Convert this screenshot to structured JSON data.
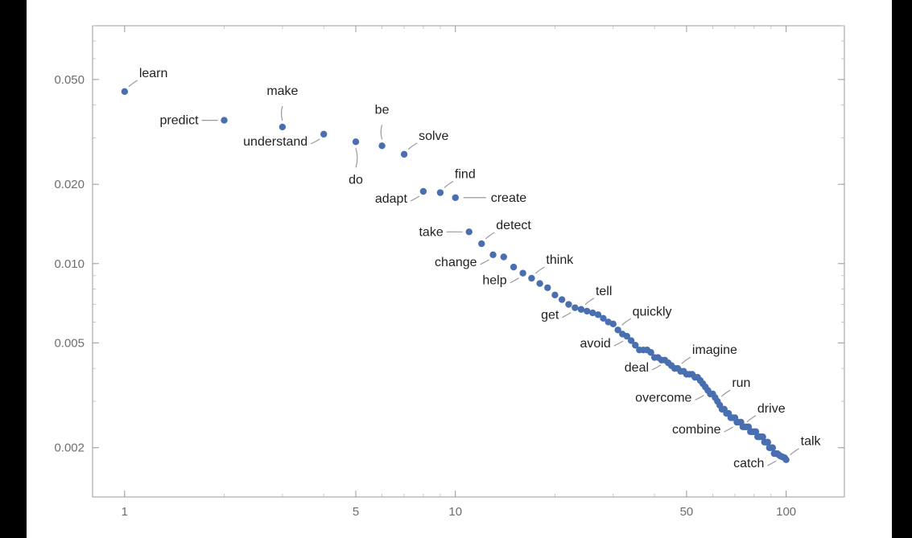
{
  "chart_data": {
    "type": "scatter",
    "title": "",
    "xlabel": "",
    "ylabel": "",
    "x_scale": "log",
    "y_scale": "log",
    "xlim": [
      0.8,
      150
    ],
    "ylim": [
      0.0013,
      0.08
    ],
    "grid": false,
    "legend": "none",
    "marker_color": "#4a6fb0",
    "x_ticks": [
      {
        "value": 1,
        "label": "1"
      },
      {
        "value": 5,
        "label": "5"
      },
      {
        "value": 10,
        "label": "10"
      },
      {
        "value": 50,
        "label": "50"
      },
      {
        "value": 100,
        "label": "100"
      }
    ],
    "y_ticks": [
      {
        "value": 0.05,
        "label": "0.050"
      },
      {
        "value": 0.02,
        "label": "0.020"
      },
      {
        "value": 0.01,
        "label": "0.010"
      },
      {
        "value": 0.005,
        "label": "0.005"
      },
      {
        "value": 0.002,
        "label": "0.002"
      }
    ],
    "points": [
      {
        "x": 1,
        "y": 0.045
      },
      {
        "x": 2,
        "y": 0.035
      },
      {
        "x": 3,
        "y": 0.033
      },
      {
        "x": 4,
        "y": 0.031
      },
      {
        "x": 5,
        "y": 0.029
      },
      {
        "x": 6,
        "y": 0.028
      },
      {
        "x": 7,
        "y": 0.026
      },
      {
        "x": 8,
        "y": 0.0188
      },
      {
        "x": 9,
        "y": 0.0186
      },
      {
        "x": 10,
        "y": 0.0178
      },
      {
        "x": 11,
        "y": 0.0132
      },
      {
        "x": 12,
        "y": 0.0119
      },
      {
        "x": 13,
        "y": 0.0108
      },
      {
        "x": 14,
        "y": 0.0106
      },
      {
        "x": 15,
        "y": 0.0097
      },
      {
        "x": 16,
        "y": 0.0092
      },
      {
        "x": 17,
        "y": 0.0088
      },
      {
        "x": 18,
        "y": 0.0084
      },
      {
        "x": 19,
        "y": 0.0081
      },
      {
        "x": 20,
        "y": 0.0076
      },
      {
        "x": 21,
        "y": 0.0073
      },
      {
        "x": 22,
        "y": 0.007
      },
      {
        "x": 23,
        "y": 0.0068
      },
      {
        "x": 24,
        "y": 0.0067
      },
      {
        "x": 25,
        "y": 0.0066
      },
      {
        "x": 26,
        "y": 0.0065
      },
      {
        "x": 27,
        "y": 0.0064
      },
      {
        "x": 28,
        "y": 0.0062
      },
      {
        "x": 29,
        "y": 0.006
      },
      {
        "x": 30,
        "y": 0.0059
      },
      {
        "x": 31,
        "y": 0.0056
      },
      {
        "x": 32,
        "y": 0.0054
      },
      {
        "x": 33,
        "y": 0.0053
      },
      {
        "x": 34,
        "y": 0.0051
      },
      {
        "x": 35,
        "y": 0.0049
      },
      {
        "x": 36,
        "y": 0.0047
      },
      {
        "x": 37,
        "y": 0.0047
      },
      {
        "x": 38,
        "y": 0.0047
      },
      {
        "x": 39,
        "y": 0.0046
      },
      {
        "x": 40,
        "y": 0.0044
      },
      {
        "x": 41,
        "y": 0.0044
      },
      {
        "x": 42,
        "y": 0.0043
      },
      {
        "x": 43,
        "y": 0.0043
      },
      {
        "x": 44,
        "y": 0.0042
      },
      {
        "x": 45,
        "y": 0.0041
      },
      {
        "x": 46,
        "y": 0.004
      },
      {
        "x": 47,
        "y": 0.004
      },
      {
        "x": 48,
        "y": 0.0039
      },
      {
        "x": 49,
        "y": 0.0039
      },
      {
        "x": 50,
        "y": 0.0038
      },
      {
        "x": 51,
        "y": 0.0038
      },
      {
        "x": 52,
        "y": 0.0038
      },
      {
        "x": 53,
        "y": 0.0037
      },
      {
        "x": 54,
        "y": 0.0037
      },
      {
        "x": 55,
        "y": 0.0036
      },
      {
        "x": 56,
        "y": 0.0035
      },
      {
        "x": 57,
        "y": 0.0034
      },
      {
        "x": 58,
        "y": 0.0033
      },
      {
        "x": 59,
        "y": 0.0032
      },
      {
        "x": 60,
        "y": 0.0032
      },
      {
        "x": 61,
        "y": 0.0031
      },
      {
        "x": 62,
        "y": 0.003
      },
      {
        "x": 63,
        "y": 0.0029
      },
      {
        "x": 64,
        "y": 0.0028
      },
      {
        "x": 65,
        "y": 0.0028
      },
      {
        "x": 66,
        "y": 0.0027
      },
      {
        "x": 67,
        "y": 0.0027
      },
      {
        "x": 68,
        "y": 0.0026
      },
      {
        "x": 69,
        "y": 0.0026
      },
      {
        "x": 70,
        "y": 0.0026
      },
      {
        "x": 71,
        "y": 0.0025
      },
      {
        "x": 72,
        "y": 0.0025
      },
      {
        "x": 73,
        "y": 0.0025
      },
      {
        "x": 74,
        "y": 0.0024
      },
      {
        "x": 75,
        "y": 0.0024
      },
      {
        "x": 76,
        "y": 0.0024
      },
      {
        "x": 77,
        "y": 0.0024
      },
      {
        "x": 78,
        "y": 0.0023
      },
      {
        "x": 79,
        "y": 0.0023
      },
      {
        "x": 80,
        "y": 0.0023
      },
      {
        "x": 81,
        "y": 0.0023
      },
      {
        "x": 82,
        "y": 0.0022
      },
      {
        "x": 83,
        "y": 0.0022
      },
      {
        "x": 84,
        "y": 0.0022
      },
      {
        "x": 85,
        "y": 0.0022
      },
      {
        "x": 86,
        "y": 0.0021
      },
      {
        "x": 87,
        "y": 0.0021
      },
      {
        "x": 88,
        "y": 0.0021
      },
      {
        "x": 89,
        "y": 0.002
      },
      {
        "x": 90,
        "y": 0.002
      },
      {
        "x": 91,
        "y": 0.002
      },
      {
        "x": 92,
        "y": 0.0019
      },
      {
        "x": 93,
        "y": 0.0019
      },
      {
        "x": 94,
        "y": 0.0019
      },
      {
        "x": 95,
        "y": 0.00188
      },
      {
        "x": 96,
        "y": 0.00186
      },
      {
        "x": 97,
        "y": 0.00185
      },
      {
        "x": 98,
        "y": 0.00184
      },
      {
        "x": 99,
        "y": 0.00183
      },
      {
        "x": 100,
        "y": 0.0018
      }
    ],
    "annotations": [
      {
        "text": "learn",
        "x": 1,
        "y": 0.045,
        "side": "upper-right"
      },
      {
        "text": "predict",
        "x": 2,
        "y": 0.035,
        "side": "left"
      },
      {
        "text": "make",
        "x": 3,
        "y": 0.033,
        "side": "above"
      },
      {
        "text": "understand",
        "x": 4,
        "y": 0.031,
        "side": "lower-left"
      },
      {
        "text": "do",
        "x": 5,
        "y": 0.029,
        "side": "below"
      },
      {
        "text": "be",
        "x": 6,
        "y": 0.028,
        "side": "above"
      },
      {
        "text": "solve",
        "x": 7,
        "y": 0.026,
        "side": "upper-right"
      },
      {
        "text": "adapt",
        "x": 8,
        "y": 0.0188,
        "side": "lower-left"
      },
      {
        "text": "find",
        "x": 9,
        "y": 0.0186,
        "side": "upper-right"
      },
      {
        "text": "create",
        "x": 10,
        "y": 0.0178,
        "side": "right"
      },
      {
        "text": "take",
        "x": 11,
        "y": 0.0132,
        "side": "left"
      },
      {
        "text": "detect",
        "x": 12,
        "y": 0.0119,
        "side": "upper-right"
      },
      {
        "text": "change",
        "x": 13,
        "y": 0.0108,
        "side": "lower-left"
      },
      {
        "text": "think",
        "x": 17,
        "y": 0.0088,
        "side": "upper-right"
      },
      {
        "text": "help",
        "x": 16,
        "y": 0.0092,
        "side": "lower-left"
      },
      {
        "text": "tell",
        "x": 24,
        "y": 0.0067,
        "side": "upper-right"
      },
      {
        "text": "get",
        "x": 23,
        "y": 0.0068,
        "side": "lower-left"
      },
      {
        "text": "quickly",
        "x": 31,
        "y": 0.0056,
        "side": "upper-right"
      },
      {
        "text": "avoid",
        "x": 33,
        "y": 0.0053,
        "side": "lower-left"
      },
      {
        "text": "imagine",
        "x": 47,
        "y": 0.004,
        "side": "upper-right"
      },
      {
        "text": "deal",
        "x": 43,
        "y": 0.0043,
        "side": "lower-left"
      },
      {
        "text": "run",
        "x": 62,
        "y": 0.003,
        "side": "upper-right"
      },
      {
        "text": "overcome",
        "x": 58,
        "y": 0.0033,
        "side": "lower-left"
      },
      {
        "text": "drive",
        "x": 74,
        "y": 0.0024,
        "side": "upper-right"
      },
      {
        "text": "combine",
        "x": 71,
        "y": 0.0025,
        "side": "lower-left"
      },
      {
        "text": "talk",
        "x": 100,
        "y": 0.0018,
        "side": "upper-right"
      },
      {
        "text": "catch",
        "x": 96,
        "y": 0.00186,
        "side": "lower-left"
      }
    ]
  }
}
